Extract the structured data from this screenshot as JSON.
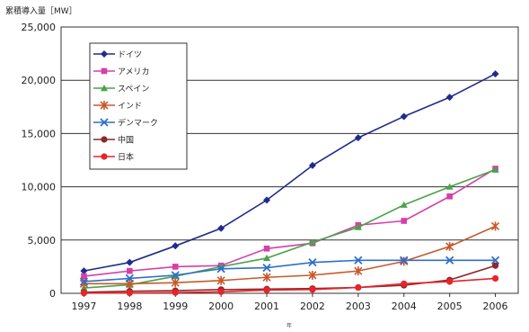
{
  "chart_data": {
    "type": "line",
    "ylabel": "累積導入量［MW］",
    "xlabel": "年",
    "ylim": [
      0,
      25000
    ],
    "yticks": [
      0,
      5000,
      10000,
      15000,
      20000,
      25000
    ],
    "ytick_labels": [
      "0",
      "5,000",
      "10,000",
      "15,000",
      "20,000",
      "25,000"
    ],
    "x": [
      "1997",
      "1998",
      "1999",
      "2000",
      "2001",
      "2002",
      "2003",
      "2004",
      "2005",
      "2006"
    ],
    "grid": "horizontal",
    "legend_position": "top-left",
    "series": [
      {
        "name": "ドイツ",
        "color": "#1f2b8c",
        "marker": "diamond",
        "values": [
          2100,
          2900,
          4450,
          6100,
          8750,
          12000,
          14600,
          16600,
          18400,
          20600
        ]
      },
      {
        "name": "アメリカ",
        "color": "#d63fa8",
        "marker": "square",
        "values": [
          1600,
          2100,
          2500,
          2600,
          4200,
          4700,
          6400,
          6800,
          9100,
          11700
        ]
      },
      {
        "name": "スペイン",
        "color": "#4aa34a",
        "marker": "triangle",
        "values": [
          500,
          800,
          1600,
          2500,
          3300,
          4800,
          6200,
          8300,
          10000,
          11600
        ]
      },
      {
        "name": "インド",
        "color": "#c8582a",
        "marker": "star",
        "values": [
          900,
          900,
          1000,
          1200,
          1500,
          1700,
          2100,
          3000,
          4400,
          6300
        ]
      },
      {
        "name": "デンマーク",
        "color": "#2f6fc8",
        "marker": "x",
        "values": [
          1100,
          1400,
          1700,
          2300,
          2400,
          2900,
          3100,
          3100,
          3100,
          3100
        ]
      },
      {
        "name": "中国",
        "color": "#8b2a2a",
        "marker": "circle",
        "values": [
          100,
          200,
          250,
          350,
          400,
          450,
          550,
          750,
          1250,
          2600
        ]
      },
      {
        "name": "日本",
        "color": "#e8232a",
        "marker": "circle",
        "values": [
          20,
          40,
          70,
          140,
          300,
          350,
          550,
          900,
          1100,
          1400
        ]
      }
    ]
  }
}
